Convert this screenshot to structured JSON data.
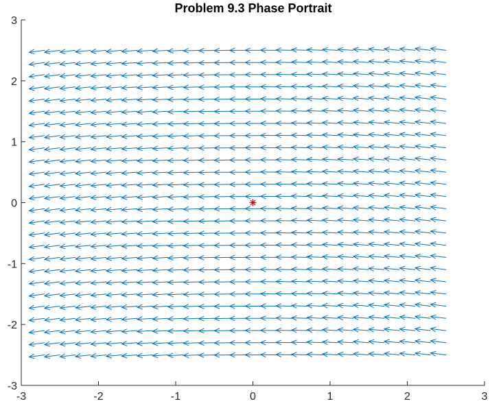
{
  "chart_data": {
    "type": "quiver",
    "title": "Problem 9.3 Phase Portrait",
    "xlabel": "",
    "ylabel": "",
    "xlim": [
      -3,
      3
    ],
    "ylim": [
      -3,
      3
    ],
    "xticks": [
      -3,
      -2,
      -1,
      0,
      1,
      2,
      3
    ],
    "yticks": [
      -3,
      -2,
      -1,
      0,
      1,
      2,
      3
    ],
    "xtick_labels": [
      "-3",
      "-2",
      "-1",
      "0",
      "1",
      "2",
      "3"
    ],
    "ytick_labels": [
      "-3",
      "-2",
      "-1",
      "0",
      "1",
      "2",
      "3"
    ],
    "grid": false,
    "quiver": {
      "x_range": [
        -2.7,
        2.5
      ],
      "y_range": [
        -2.5,
        2.5
      ],
      "step": 0.2,
      "field": "dx = -1, dy = 0.05*x",
      "arrow_length": 0.2,
      "color": "#0072BD"
    },
    "equilibrium": {
      "x": 0,
      "y": 0,
      "marker": "*",
      "color": "#D40000"
    }
  }
}
